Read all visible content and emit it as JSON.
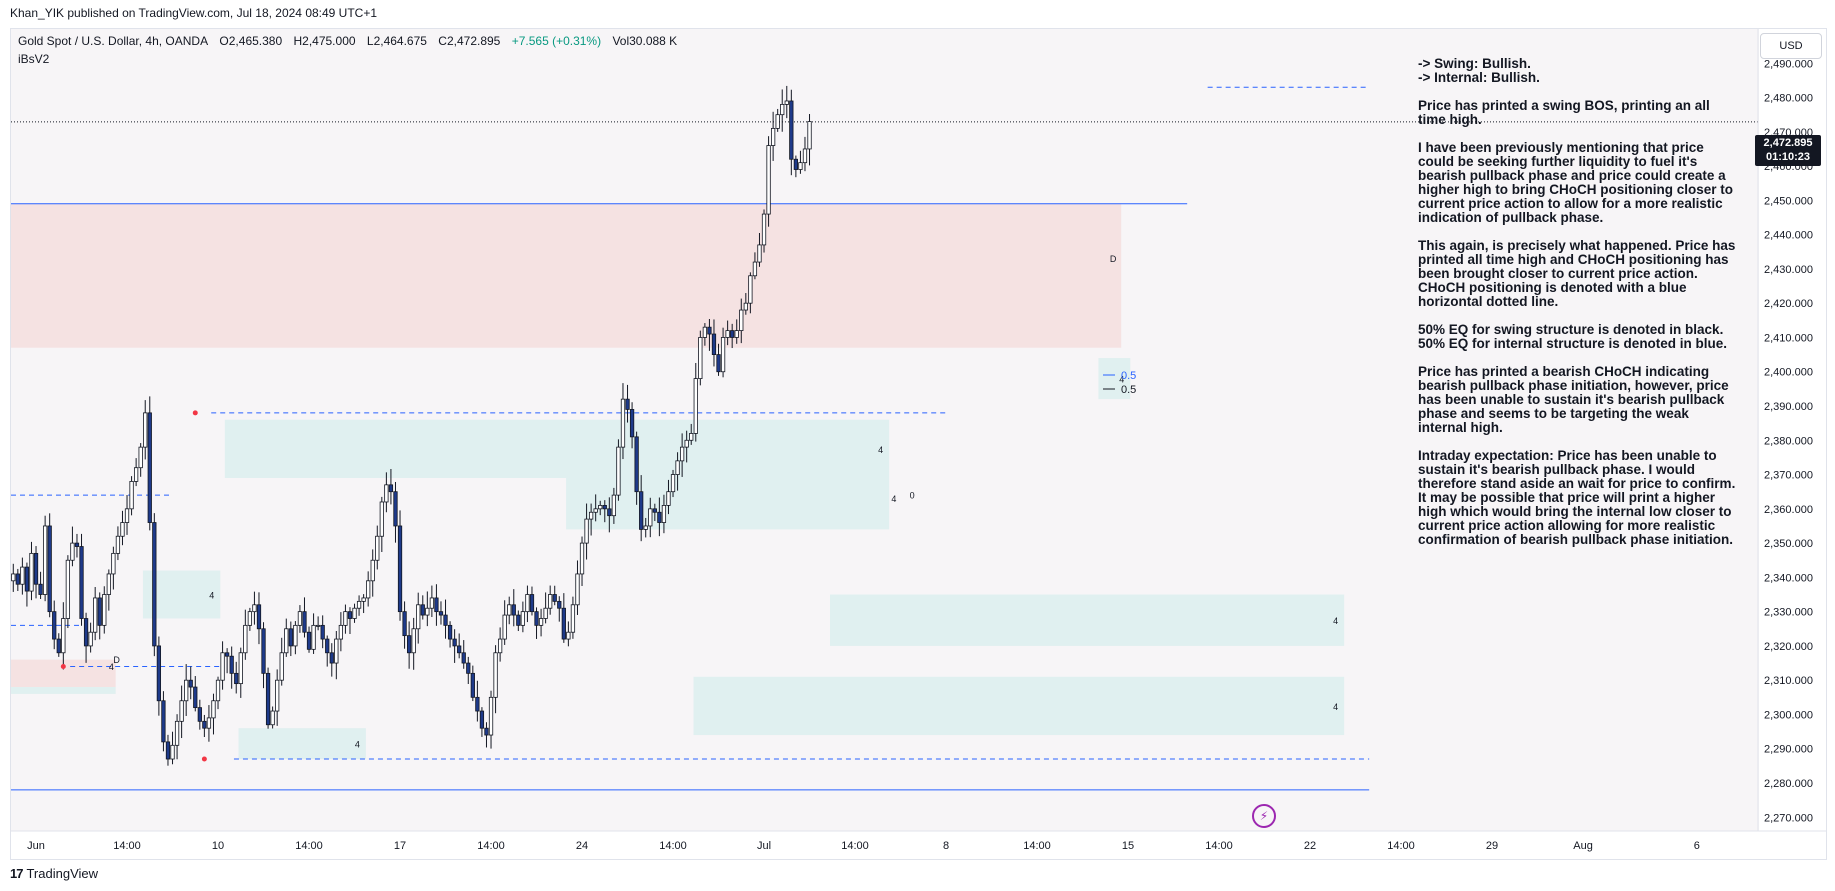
{
  "header": {
    "published_by": "Khan_YIK published on TradingView.com, Jul 18, 2024 08:49 UTC+1"
  },
  "symbol_bar": {
    "instrument": "Gold Spot / U.S. Dollar, 4h, OANDA",
    "open": "O2,465.380",
    "high": "H2,475.000",
    "low": "L2,464.675",
    "close": "C2,472.895",
    "change": "+7.565 (+0.31%)",
    "volume": "Vol30.088 K",
    "indicator": "iBsV2"
  },
  "currency_button": "USD",
  "last_price": {
    "price": "2,472.895",
    "countdown": "01:10:23"
  },
  "annotation_text": [
    "-> Swing:  Bullish.",
    "-> Internal:  Bullish.",
    "Price has printed a swing BOS, printing an all time high.",
    "I have been previously mentioning that price could be seeking further liquidity to fuel it's bearish pullback phase and price could create a higher high to bring CHoCH positioning closer to current price action to allow for a more realistic indication of pullback phase.",
    "This again, is precisely what happened. Price has printed all time high and CHoCH positioning has been brought closer to current price action.  CHoCH positioning is denoted with a blue horizontal dotted line.",
    "50% EQ for swing structure is denoted in black.  50% EQ for internal structure is denoted in blue.",
    "Price has printed a bearish CHoCH indicating bearish pullback phase initiation, however, price has been unable to sustain it's bearish pullback phase and seems to be targeting the weak internal high.",
    "Intraday expectation: Price has been unable to sustain it's bearish pullback phase.  I would therefore stand aside an wait for price to confirm.  It may be possible that price will print a higher high which would bring the internal low closer to current price action allowing for more realistic confirmation of bearish pullback phase initiation."
  ],
  "footer": {
    "brand": "TradingView",
    "brand_mark": "17"
  },
  "icons": {
    "replay": "lightning-icon",
    "logo": "tradingview-logo-icon"
  },
  "colors": {
    "bull_candle": "#ffffff",
    "bear_candle": "#1e3a8a",
    "candle_outline": "#131722",
    "supply_zone": "#f5dede",
    "demand_zone": "#dcefef",
    "blue_line": "#2962ff",
    "pivot_dot": "#f23645"
  },
  "chart_data": {
    "type": "candlestick",
    "timeframe": "4h",
    "title": "Gold Spot / U.S. Dollar, 4h, OANDA",
    "y_ticks": [
      "2,490.000",
      "2,480.000",
      "2,470.000",
      "2,460.000",
      "2,450.000",
      "2,440.000",
      "2,430.000",
      "2,420.000",
      "2,410.000",
      "2,400.000",
      "2,390.000",
      "2,380.000",
      "2,370.000",
      "2,360.000",
      "2,350.000",
      "2,340.000",
      "2,330.000",
      "2,320.000",
      "2,310.000",
      "2,300.000",
      "2,290.000",
      "2,280.000",
      "2,270.000"
    ],
    "y_tick_values": [
      2490,
      2480,
      2470,
      2460,
      2450,
      2440,
      2430,
      2420,
      2410,
      2400,
      2390,
      2380,
      2370,
      2360,
      2350,
      2340,
      2330,
      2320,
      2310,
      2300,
      2290,
      2280,
      2270
    ],
    "ylim": [
      2266,
      2500
    ],
    "x_ticks": [
      {
        "label": "Jun",
        "bar": 5
      },
      {
        "label": "14:00",
        "bar": 25
      },
      {
        "label": "10",
        "bar": 45
      },
      {
        "label": "14:00",
        "bar": 65
      },
      {
        "label": "17",
        "bar": 85
      },
      {
        "label": "14:00",
        "bar": 105
      },
      {
        "label": "24",
        "bar": 125
      },
      {
        "label": "14:00",
        "bar": 145
      },
      {
        "label": "Jul",
        "bar": 165
      },
      {
        "label": "14:00",
        "bar": 185
      },
      {
        "label": "8",
        "bar": 205
      },
      {
        "label": "14:00",
        "bar": 225
      },
      {
        "label": "15",
        "bar": 245
      },
      {
        "label": "14:00",
        "bar": 265
      },
      {
        "label": "22",
        "bar": 285
      },
      {
        "label": "14:00",
        "bar": 305
      },
      {
        "label": "29",
        "bar": 325
      },
      {
        "label": "Aug",
        "bar": 345
      },
      {
        "label": "6",
        "bar": 370
      }
    ],
    "eq_labels": [
      {
        "label": "0.5",
        "style": "blue",
        "value": 2383
      },
      {
        "label": "0.5",
        "style": "black",
        "value": 2380
      }
    ],
    "candles_close": [
      2341,
      2338,
      2343,
      2336,
      2347,
      2338,
      2335,
      2355,
      2330,
      2322,
      2318,
      2328,
      2345,
      2350,
      2349,
      2328,
      2320,
      2324,
      2334,
      2326,
      2335,
      2341,
      2347,
      2352,
      2356,
      2360,
      2368,
      2372,
      2378,
      2388,
      2356,
      2320,
      2304,
      2292,
      2287,
      2291,
      2298,
      2304,
      2310,
      2308,
      2302,
      2298,
      2296,
      2299,
      2304,
      2310,
      2318,
      2317,
      2312,
      2309,
      2318,
      2326,
      2330,
      2332,
      2325,
      2312,
      2297,
      2301,
      2310,
      2318,
      2325,
      2320,
      2326,
      2330,
      2324,
      2319,
      2326,
      2326,
      2322,
      2318,
      2315,
      2322,
      2326,
      2330,
      2328,
      2331,
      2333,
      2334,
      2339,
      2345,
      2352,
      2362,
      2367,
      2365,
      2355,
      2330,
      2323,
      2318,
      2325,
      2332,
      2329,
      2331,
      2334,
      2330,
      2329,
      2326,
      2322,
      2320,
      2318,
      2315,
      2312,
      2305,
      2301,
      2296,
      2294,
      2305,
      2318,
      2322,
      2329,
      2332,
      2329,
      2326,
      2330,
      2335,
      2330,
      2326,
      2328,
      2331,
      2335,
      2333,
      2331,
      2322,
      2324,
      2332,
      2341,
      2350,
      2357,
      2359,
      2360,
      2361,
      2360,
      2358,
      2364,
      2378,
      2392,
      2389,
      2381,
      2365,
      2354,
      2355,
      2360,
      2359,
      2356,
      2361,
      2365,
      2370,
      2374,
      2378,
      2380,
      2382,
      2398,
      2410,
      2413,
      2411,
      2405,
      2400,
      2410,
      2412,
      2410,
      2412,
      2418,
      2420,
      2428,
      2432,
      2437,
      2446,
      2466,
      2471,
      2475,
      2478,
      2479,
      2462,
      2459,
      2461,
      2465,
      2473
    ],
    "zones": [
      {
        "kind": "supply",
        "bar_from": 0,
        "bar_to": 243,
        "top": 2449,
        "bottom": 2407
      },
      {
        "kind": "supply",
        "bar_from": 0,
        "bar_to": 22,
        "top": 2316,
        "bottom": 2308
      },
      {
        "kind": "demand",
        "bar_from": 47,
        "bar_to": 192,
        "top": 2386,
        "bottom": 2369,
        "label": "4"
      },
      {
        "kind": "demand",
        "bar_from": 122,
        "bar_to": 192,
        "top": 2369,
        "bottom": 2354
      },
      {
        "kind": "demand",
        "bar_from": 29,
        "bar_to": 45,
        "top": 2342,
        "bottom": 2328,
        "label": "4"
      },
      {
        "kind": "demand",
        "bar_from": 50,
        "bar_to": 77,
        "top": 2296,
        "bottom": 2287,
        "label": "4"
      },
      {
        "kind": "demand",
        "bar_from": 180,
        "bar_to": 292,
        "top": 2335,
        "bottom": 2320,
        "label": "4"
      },
      {
        "kind": "demand",
        "bar_from": 150,
        "bar_to": 292,
        "top": 2311,
        "bottom": 2294,
        "label": "4"
      },
      {
        "kind": "demand",
        "bar_from": 239,
        "bar_to": 245,
        "top": 2404,
        "bottom": 2392,
        "label": "4"
      },
      {
        "kind": "demand",
        "bar_from": 0,
        "bar_to": 22,
        "top": 2308,
        "bottom": 2306
      }
    ],
    "levels": [
      {
        "kind": "solid",
        "value": 2449,
        "bar_from": 0,
        "bar_to": 258
      },
      {
        "kind": "solid",
        "value": 2278,
        "bar_from": 0,
        "bar_to": 298
      },
      {
        "kind": "dashed",
        "value": 2483,
        "bar_from": 263,
        "bar_to": 298
      },
      {
        "kind": "dashed",
        "value": 2388,
        "bar_from": 44,
        "bar_to": 205
      },
      {
        "kind": "dashed",
        "value": 2364,
        "bar_from": 0,
        "bar_to": 35
      },
      {
        "kind": "dashed",
        "value": 2326,
        "bar_from": 0,
        "bar_to": 15
      },
      {
        "kind": "dashed",
        "value": 2314,
        "bar_from": 13,
        "bar_to": 46
      },
      {
        "kind": "dashed",
        "value": 2287,
        "bar_from": 49,
        "bar_to": 298
      },
      {
        "kind": "dotted",
        "value": 2472.895,
        "bar_from": 0,
        "bar_to": 380
      }
    ],
    "markers": [
      {
        "label": "D",
        "bar": 22,
        "value": 2315
      },
      {
        "label": "4",
        "bar": 21,
        "value": 2313
      },
      {
        "label": "0",
        "bar": 197,
        "value": 2363
      },
      {
        "label": "4",
        "bar": 193,
        "value": 2362
      },
      {
        "label": "D",
        "bar": 241,
        "value": 2432
      }
    ]
  }
}
